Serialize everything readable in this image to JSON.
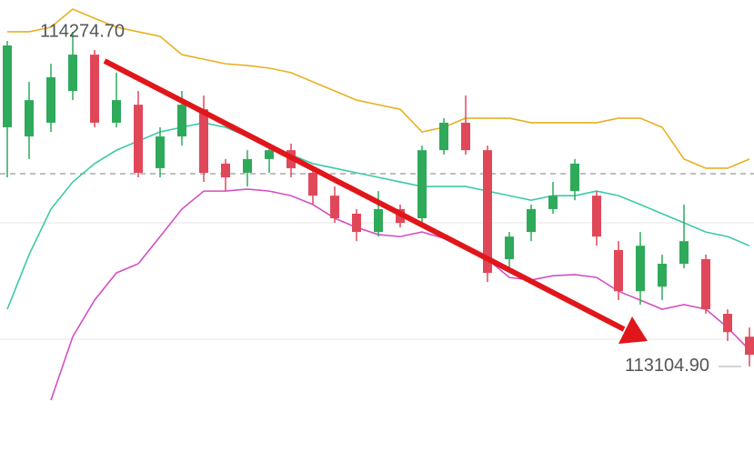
{
  "chart_data": {
    "type": "candlestick",
    "ylim": [
      112736,
      114386
    ],
    "up_color": "#2eaa5a",
    "down_color": "#e0485a",
    "open": [
      113941,
      113909,
      113957,
      114068,
      114195,
      113957,
      114020,
      113798,
      113909,
      114004,
      113814,
      113782,
      113830,
      113861,
      113782,
      113702,
      113639,
      113575,
      113655,
      113623,
      113861,
      113957,
      113861,
      113480,
      113575,
      113655,
      113718,
      113702,
      113512,
      113368,
      113384,
      113464,
      113480,
      113289,
      113209
    ],
    "high": [
      114243,
      114100,
      114163,
      114274.7,
      114211,
      114132,
      114068,
      113941,
      114068,
      114052,
      113830,
      113861,
      113877,
      113884,
      113798,
      113734,
      113655,
      113718,
      113671,
      113877,
      113973,
      114052,
      113877,
      113575,
      113671,
      113750,
      113830,
      113718,
      113543,
      113575,
      113496,
      113671,
      113496,
      113305,
      113241
    ],
    "low": [
      113766,
      113830,
      113925,
      114036,
      113941,
      113941,
      113766,
      113766,
      113877,
      113750,
      113718,
      113734,
      113782,
      113766,
      113671,
      113607,
      113543,
      113559,
      113591,
      113607,
      113845,
      113845,
      113400,
      113432,
      113543,
      113639,
      113686,
      113527,
      113337,
      113321,
      113337,
      113448,
      113289,
      113194,
      113104.9
    ],
    "close": [
      114227,
      114036,
      114116,
      114195,
      113957,
      114036,
      113782,
      113909,
      114020,
      113782,
      113766,
      113830,
      113861,
      113798,
      113702,
      113623,
      113575,
      113655,
      113607,
      113861,
      113957,
      113861,
      113432,
      113559,
      113655,
      113702,
      113814,
      113559,
      113368,
      113527,
      113464,
      113543,
      113305,
      113225,
      113146
    ],
    "series": [
      {
        "color": "#e8b020",
        "values": [
          114275,
          114275,
          114291,
          114354,
          114322,
          114291,
          114275,
          114259,
          114195,
          114179,
          114163,
          114157,
          114148,
          114132,
          114100,
          114068,
          114036,
          114020,
          114004,
          113925,
          113941,
          113973,
          113973,
          113973,
          113957,
          113957,
          113957,
          113957,
          113973,
          113973,
          113941,
          113830,
          113798,
          113798,
          113830
        ]
      },
      {
        "color": "#3cc9a8",
        "values": [
          113305,
          113496,
          113655,
          113750,
          113814,
          113861,
          113893,
          113925,
          113941,
          113957,
          113941,
          113909,
          113877,
          113845,
          113814,
          113798,
          113782,
          113766,
          113750,
          113734,
          113734,
          113734,
          113718,
          113702,
          113686,
          113702,
          113702,
          113718,
          113702,
          113671,
          113639,
          113607,
          113575,
          113559,
          113527
        ]
      },
      {
        "color": "#d44fc4",
        "values": [
          null,
          null,
          112987,
          113209,
          113337,
          113432,
          113464,
          113559,
          113655,
          113718,
          113718,
          113725,
          113718,
          113702,
          113671,
          113623,
          113591,
          113566,
          113559,
          113575,
          113553,
          113527,
          113480,
          113416,
          113407,
          113422,
          113426,
          113416,
          113368,
          113337,
          113305,
          113321,
          113305,
          113241,
          113162
        ]
      }
    ],
    "annotations": [
      {
        "value": 114274.7,
        "label": "114274.70"
      },
      {
        "value": 113104.9,
        "label": "113104.90"
      }
    ]
  }
}
